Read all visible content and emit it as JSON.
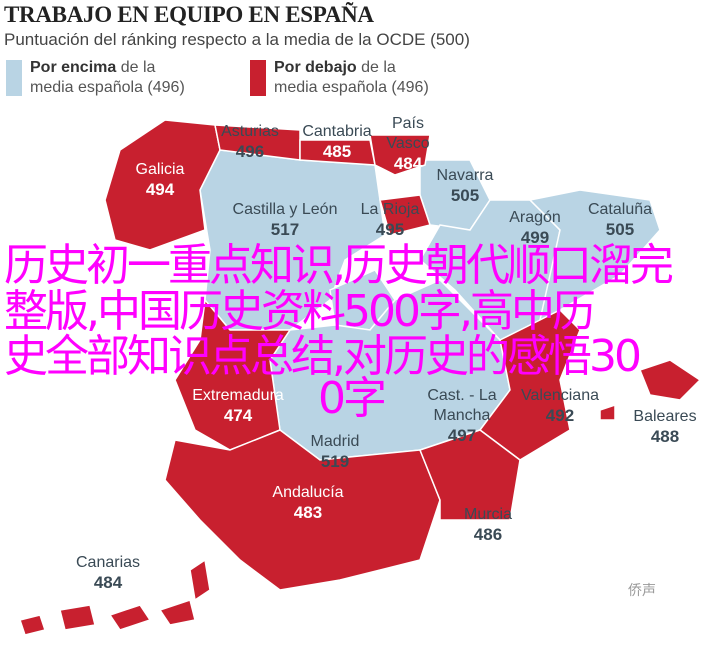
{
  "header": {
    "title": "TRABAJO EN EQUIPO EN ESPAÑA",
    "subtitle": "Puntuación del ránking respecto a la media de la OCDE (500)"
  },
  "legend": [
    {
      "bold": "Por encima",
      "rest": " de la",
      "line2": "media española (496)",
      "color": "#b9d4e4"
    },
    {
      "bold": "Por debajo",
      "rest": " de la",
      "line2": "media española (496)",
      "color": "#c8202f"
    }
  ],
  "regions": [
    {
      "name": "Galicia",
      "value": "494",
      "status": "below"
    },
    {
      "name": "Asturias",
      "value": "496",
      "status": "below"
    },
    {
      "name": "Cantabria",
      "value": "485",
      "status": "below"
    },
    {
      "name": "País Vasco",
      "value": "484",
      "status": "below"
    },
    {
      "name": "Navarra",
      "value": "505",
      "status": "above"
    },
    {
      "name": "La Rioja",
      "value": "495",
      "status": "below"
    },
    {
      "name": "Castilla y León",
      "value": "517",
      "status": "above"
    },
    {
      "name": "Aragón",
      "value": "499",
      "status": "above"
    },
    {
      "name": "Cataluña",
      "value": "505",
      "status": "above"
    },
    {
      "name": "Madrid",
      "value": "519",
      "status": "above"
    },
    {
      "name": "Extremadura",
      "value": "474",
      "status": "below"
    },
    {
      "name": "Cast. - La Mancha",
      "value": "497",
      "status": "above"
    },
    {
      "name": "Valenciana",
      "value": "492",
      "status": "below"
    },
    {
      "name": "Baleares",
      "value": "488",
      "status": "below"
    },
    {
      "name": "Andalucía",
      "value": "483",
      "status": "below"
    },
    {
      "name": "Murcia",
      "value": "486",
      "status": "below"
    },
    {
      "name": "Canarias",
      "value": "484",
      "status": "below"
    }
  ],
  "overlay_text": [
    "历史初一重点知识,历史朝代顺口溜完",
    "整版,中国历史资料500字,高中历",
    "史全部知识点总结,对历史的感悟30",
    "0字"
  ],
  "watermark": "侨声",
  "colors": {
    "above": "#b9d4e4",
    "below": "#c8202f",
    "overlay": "#ff00ff"
  }
}
